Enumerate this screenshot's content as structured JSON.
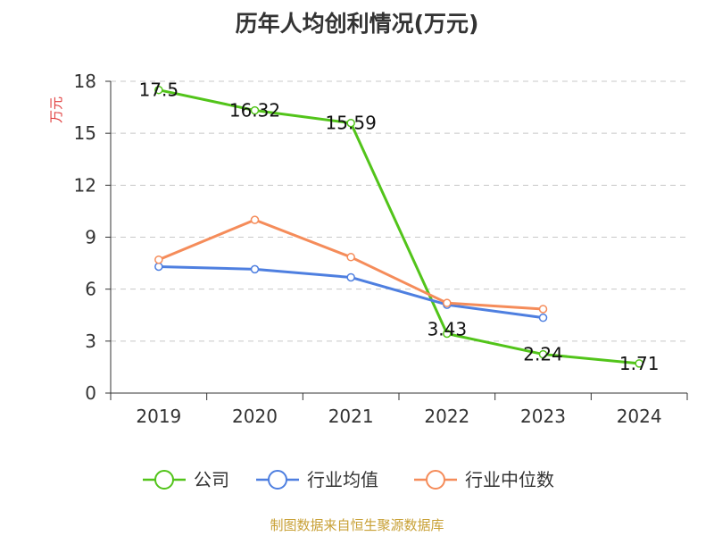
{
  "chart_data": {
    "type": "line",
    "title": "历年人均创利情况(万元)",
    "ylabel": "万元",
    "xlabel": "",
    "categories": [
      "2019",
      "2020",
      "2021",
      "2022",
      "2023",
      "2024"
    ],
    "ylim": [
      0,
      18
    ],
    "yticks": [
      0,
      3,
      6,
      9,
      12,
      15,
      18
    ],
    "grid": true,
    "legend_position": "bottom",
    "series": [
      {
        "name": "公司",
        "color": "#52c41a",
        "values": [
          17.5,
          16.32,
          15.59,
          3.43,
          2.24,
          1.71
        ],
        "labels": [
          "17.5",
          "16.32",
          "15.59",
          "3.43",
          "2.24",
          "1.71"
        ]
      },
      {
        "name": "行业均值",
        "color": "#4e7fe0",
        "values": [
          7.3,
          7.15,
          6.68,
          5.1,
          4.35,
          null
        ]
      },
      {
        "name": "行业中位数",
        "color": "#f58c5a",
        "values": [
          7.7,
          10.0,
          7.85,
          5.2,
          4.85,
          null
        ]
      }
    ],
    "source": "制图数据来自恒生聚源数据库"
  }
}
